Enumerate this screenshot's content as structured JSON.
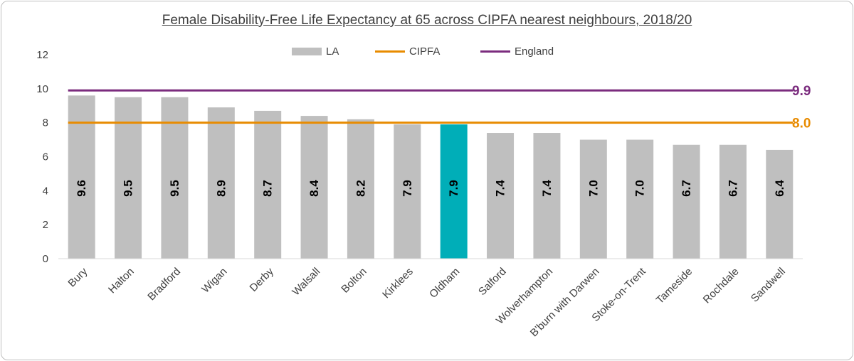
{
  "chart_data": {
    "type": "bar",
    "title": "Female Disability-Free Life Expectancy at 65 across CIPFA nearest neighbours, 2018/20",
    "categories": [
      "Bury",
      "Halton",
      "Bradford",
      "Wigan",
      "Derby",
      "Walsall",
      "Bolton",
      "Kirklees",
      "Oldham",
      "Salford",
      "Wolverhampton",
      "B'burn with Darwen",
      "Stoke-on-Trent",
      "Tameside",
      "Rochdale",
      "Sandwell"
    ],
    "values": [
      9.6,
      9.5,
      9.5,
      8.9,
      8.7,
      8.4,
      8.2,
      7.9,
      7.9,
      7.4,
      7.4,
      7.0,
      7.0,
      6.7,
      6.7,
      6.4
    ],
    "value_labels": [
      "9.6",
      "9.5",
      "9.5",
      "8.9",
      "8.7",
      "8.4",
      "8.2",
      "7.9",
      "7.9",
      "7.4",
      "7.4",
      "7.0",
      "7.0",
      "6.7",
      "6.7",
      "6.4"
    ],
    "highlight_category": "Oldham",
    "reference_lines": [
      {
        "name": "CIPFA",
        "value": 8.0,
        "label": "8.0",
        "color": "#E88B00"
      },
      {
        "name": "England",
        "value": 9.9,
        "label": "9.9",
        "color": "#7B2C7E"
      }
    ],
    "legend": [
      {
        "name": "LA",
        "kind": "bar",
        "color": "#BFBFBF"
      },
      {
        "name": "CIPFA",
        "kind": "line",
        "color": "#E88B00"
      },
      {
        "name": "England",
        "kind": "line",
        "color": "#7B2C7E"
      }
    ],
    "legend_position": "top",
    "ylim": [
      0,
      12
    ],
    "yticks": [
      "0",
      "2",
      "4",
      "6",
      "8",
      "10",
      "12"
    ],
    "grid": false,
    "xlabel": "",
    "ylabel": "",
    "colors": {
      "bar": "#BFBFBF",
      "highlight": "#00AEB8"
    }
  }
}
